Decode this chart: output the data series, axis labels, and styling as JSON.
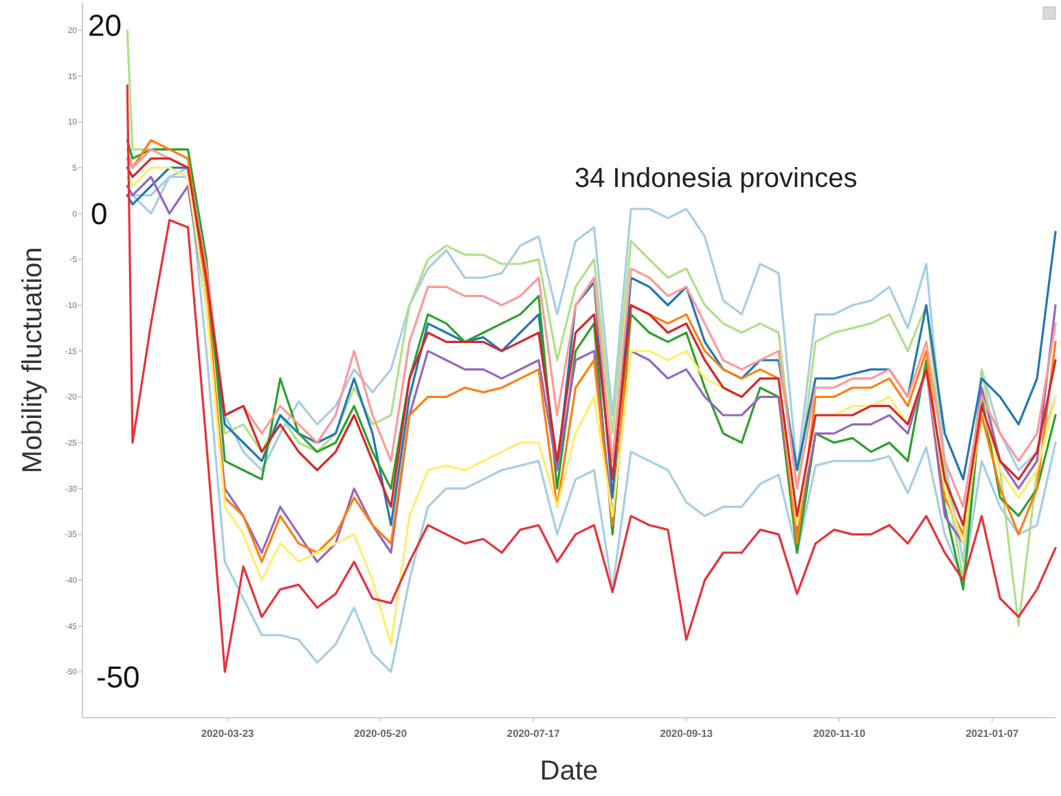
{
  "chart_data": {
    "type": "line",
    "title": "34 Indonesia provinces",
    "xlabel": "Date",
    "ylabel": "Mobility fluctuation",
    "annotations": [
      "20",
      "0",
      "-50"
    ],
    "x": [
      "2020-02-14",
      "2020-02-16",
      "2020-02-23",
      "2020-03-01",
      "2020-03-08",
      "2020-03-15",
      "2020-03-22",
      "2020-03-29",
      "2020-04-05",
      "2020-04-12",
      "2020-04-19",
      "2020-04-26",
      "2020-05-03",
      "2020-05-10",
      "2020-05-17",
      "2020-05-24",
      "2020-05-31",
      "2020-06-07",
      "2020-06-14",
      "2020-06-21",
      "2020-06-28",
      "2020-07-05",
      "2020-07-12",
      "2020-07-19",
      "2020-07-26",
      "2020-08-02",
      "2020-08-09",
      "2020-08-16",
      "2020-08-23",
      "2020-08-30",
      "2020-09-06",
      "2020-09-13",
      "2020-09-20",
      "2020-09-27",
      "2020-10-04",
      "2020-10-11",
      "2020-10-18",
      "2020-10-25",
      "2020-11-01",
      "2020-11-08",
      "2020-11-15",
      "2020-11-22",
      "2020-11-29",
      "2020-12-06",
      "2020-12-13",
      "2020-12-20",
      "2020-12-27",
      "2021-01-03",
      "2021-01-10",
      "2021-01-17",
      "2021-01-24",
      "2021-01-31"
    ],
    "series": [
      {
        "color": "#a6cee3",
        "values": [
          3,
          2,
          2,
          4,
          5,
          -15,
          -38,
          -42,
          -46,
          -46,
          -46.5,
          -49,
          -47,
          -43,
          -48,
          -50,
          -40,
          -32,
          -30,
          -30,
          -29,
          -28,
          -27.5,
          -27,
          -35,
          -29,
          -28,
          -41,
          -26,
          -27,
          -28,
          -31.5,
          -33,
          -32,
          -32,
          -29.5,
          -28.5,
          -37,
          -27.5,
          -27,
          -27,
          -27,
          -26.5,
          -30.5,
          -25.5,
          -35,
          -40,
          -27,
          -32,
          -35,
          -34,
          -25
        ]
      },
      {
        "color": "#a6cee3",
        "values": [
          2,
          2,
          0,
          4,
          4,
          -10,
          -22,
          -26,
          -28,
          -24,
          -20.5,
          -23,
          -21,
          -17,
          -19.5,
          -17,
          -10,
          -6,
          -4,
          -7,
          -7,
          -6.5,
          -3.5,
          -2.5,
          -11,
          -3,
          -1.5,
          -22,
          0.5,
          0.5,
          -0.5,
          0.5,
          -2.5,
          -9.5,
          -11,
          -5.5,
          -6.5,
          -28,
          -11,
          -11,
          -10,
          -9.5,
          -8,
          -12.5,
          -5.5,
          -27,
          -38,
          -17,
          -24,
          -28,
          -26,
          -20
        ]
      },
      {
        "color": "#b2df8a",
        "values": [
          20,
          7,
          7,
          7,
          6,
          -8,
          -24,
          -23,
          -26,
          -22,
          -25,
          -26,
          -24,
          -19,
          -23,
          -22,
          -10,
          -5,
          -3.5,
          -4.5,
          -4.5,
          -5.5,
          -5.5,
          -5,
          -16,
          -8,
          -5,
          -24,
          -3,
          -5,
          -7,
          -6,
          -10,
          -12,
          -13,
          -12,
          -13,
          -30,
          -14,
          -13,
          -12.5,
          -12,
          -11,
          -15,
          -10,
          -28,
          -40,
          -17,
          -28,
          -45,
          -28,
          -20
        ]
      },
      {
        "color": "#1f77b4",
        "values": [
          2,
          1,
          3,
          5,
          5,
          -8,
          -23,
          -25,
          -27,
          -22,
          -24,
          -25,
          -24,
          -18,
          -24,
          -34,
          -20,
          -12,
          -13,
          -14,
          -13.5,
          -15,
          -13,
          -11,
          -28,
          -10,
          -7.5,
          -31,
          -7,
          -8,
          -10,
          -8,
          -14,
          -17,
          -18,
          -16,
          -16,
          -28,
          -18,
          -18,
          -17.5,
          -17,
          -17,
          -20,
          -10,
          -24,
          -29,
          -18,
          -20,
          -23,
          -18,
          -2
        ]
      },
      {
        "color": "#2ca02c",
        "values": [
          8,
          6,
          7,
          7,
          7,
          -5,
          -27,
          -28,
          -29,
          -18,
          -24,
          -26,
          -25,
          -21,
          -26,
          -30,
          -18,
          -11,
          -12,
          -14,
          -13,
          -12,
          -11,
          -9,
          -30,
          -15,
          -12,
          -35,
          -11,
          -13,
          -14,
          -13,
          -19,
          -24,
          -25,
          -19,
          -20,
          -37,
          -24,
          -25,
          -24.5,
          -26,
          -25,
          -27,
          -16,
          -32,
          -41,
          -20,
          -31,
          -33,
          -30,
          -22
        ]
      },
      {
        "color": "#9467bd",
        "values": [
          3,
          2,
          4,
          0,
          3,
          -10,
          -30,
          -33,
          -37,
          -32,
          -35,
          -38,
          -36,
          -30,
          -34,
          -37,
          -22,
          -15,
          -16,
          -17,
          -17,
          -18,
          -17,
          -16,
          -28,
          -16,
          -15,
          -33,
          -15,
          -16,
          -18,
          -17,
          -20,
          -22,
          -22,
          -20,
          -20,
          -35,
          -24,
          -24,
          -23,
          -23,
          -22,
          -24,
          -17,
          -33,
          -36,
          -19,
          -27,
          -30,
          -27,
          -10
        ]
      },
      {
        "color": "#ff7f0e",
        "values": [
          6,
          5,
          8,
          7,
          6,
          -8,
          -31,
          -33,
          -38,
          -33,
          -36,
          -37,
          -35,
          -31,
          -34,
          -36,
          -22,
          -20,
          -20,
          -19,
          -19.5,
          -19,
          -18,
          -17,
          -32,
          -19,
          -16,
          -34,
          -10,
          -11,
          -12,
          -11,
          -15,
          -17,
          -18,
          -17,
          -18,
          -36,
          -20,
          -20,
          -19,
          -19,
          -18,
          -21,
          -15,
          -31,
          -35,
          -22,
          -30,
          -35,
          -30,
          -14
        ]
      },
      {
        "color": "#ffed6f",
        "values": [
          4,
          3,
          5,
          5,
          4,
          -10,
          -32,
          -35,
          -40,
          -36,
          -38,
          -37,
          -36,
          -35,
          -40,
          -47,
          -33,
          -28,
          -27.5,
          -28,
          -27,
          -26,
          -25,
          -25,
          -32,
          -24,
          -20,
          -33,
          -15,
          -15,
          -16,
          -15,
          -18,
          -19,
          -20,
          -18,
          -18,
          -34,
          -22,
          -22,
          -21,
          -21,
          -20,
          -23,
          -17,
          -30,
          -36,
          -21,
          -28,
          -31,
          -28,
          -20
        ]
      },
      {
        "color": "#fb9a99",
        "values": [
          7,
          5,
          7,
          6,
          5,
          -6,
          -22,
          -21,
          -24,
          -21,
          -23,
          -25,
          -22,
          -15,
          -22,
          -27,
          -14,
          -8,
          -8,
          -9,
          -9,
          -10,
          -9,
          -7,
          -22,
          -10,
          -7,
          -27,
          -6,
          -7,
          -9,
          -8,
          -12,
          -16,
          -17,
          -16,
          -15,
          -30,
          -19,
          -19,
          -18,
          -18,
          -17,
          -20,
          -14,
          -27,
          -32,
          -20,
          -24,
          -27,
          -24,
          -12
        ]
      },
      {
        "color": "#d62728",
        "values": [
          5,
          4,
          6,
          6,
          5,
          -7,
          -22,
          -21,
          -26,
          -23,
          -26,
          -28,
          -26,
          -22,
          -27,
          -32,
          -18,
          -13,
          -14,
          -14,
          -14,
          -15,
          -14,
          -13,
          -27,
          -13,
          -11,
          -29,
          -10,
          -11,
          -13,
          -12,
          -16,
          -19,
          -20,
          -18,
          -18,
          -33,
          -22,
          -22,
          -22,
          -21,
          -21,
          -23,
          -17,
          -29,
          -34,
          -21,
          -27,
          -29,
          -26,
          -16
        ]
      },
      {
        "color": "#e8313a",
        "values": [
          14,
          -25,
          -12,
          -0.7,
          -1.5,
          -25,
          -50,
          -38.5,
          -44,
          -41,
          -40.5,
          -43,
          -41.5,
          -38,
          -42,
          -42.5,
          -38,
          -34,
          -35,
          -36,
          -35.5,
          -37,
          -34.5,
          -34,
          -38,
          -35,
          -34,
          -41.3,
          -33,
          -34,
          -34.5,
          -46.5,
          -40,
          -37,
          -37,
          -34.5,
          -35,
          -41.5,
          -36,
          -34.5,
          -35,
          -35,
          -34,
          -36,
          -33,
          -37,
          -40,
          -33,
          -42,
          -44,
          -41,
          -36.5
        ]
      }
    ],
    "xlim": [
      "2020-01-28",
      "2021-01-31"
    ],
    "xticks": [
      "2020-03-23",
      "2020-05-20",
      "2020-07-17",
      "2020-09-13",
      "2020-11-10",
      "2021-01-07"
    ],
    "ylim": [
      -55,
      23
    ],
    "yticks": [
      -50,
      -45,
      -40,
      -35,
      -30,
      -25,
      -20,
      -15,
      -10,
      -5,
      0,
      5,
      10,
      15,
      20
    ],
    "grid": false,
    "marker": "none",
    "line_style": "solid"
  }
}
